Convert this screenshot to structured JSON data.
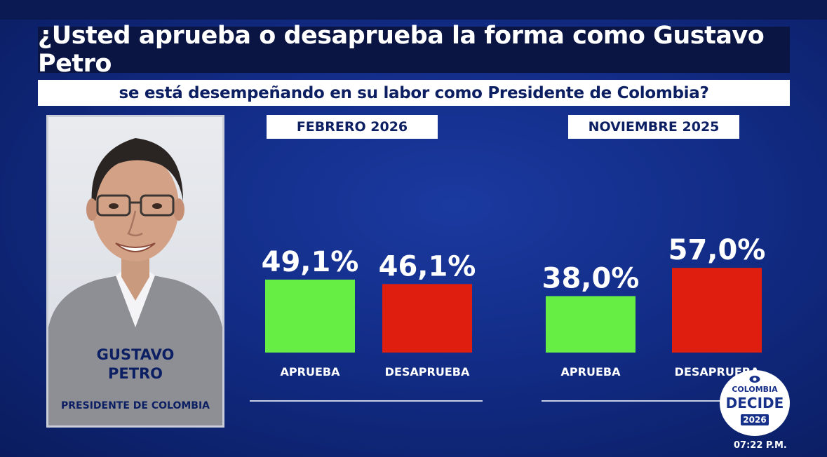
{
  "title": "¿Usted aprueba o desaprueba la forma como Gustavo Petro",
  "subtitle": "se está desempeñando en su labor como Presidente de Colombia?",
  "person": {
    "name_line1": "GUSTAVO",
    "name_line2": "PETRO",
    "role": "PRESIDENTE DE COLOMBIA"
  },
  "colors": {
    "approve": "#66ee44",
    "disapprove": "#e01e10"
  },
  "chart_data": [
    {
      "type": "bar",
      "period": "FEBRERO 2026",
      "categories": [
        "APRUEBA",
        "DESAPRUEBA"
      ],
      "values": [
        49.1,
        46.1
      ],
      "value_labels": [
        "49,1%",
        "46,1%"
      ]
    },
    {
      "type": "bar",
      "period": "NOVIEMBRE 2025",
      "categories": [
        "APRUEBA",
        "DESAPRUEBA"
      ],
      "values": [
        38.0,
        57.0
      ],
      "value_labels": [
        "38,0%",
        "57,0%"
      ]
    }
  ],
  "logo": {
    "top": "COLOMBIA",
    "main": "DECIDE",
    "year": "2026"
  },
  "time": "07:22 P.M."
}
